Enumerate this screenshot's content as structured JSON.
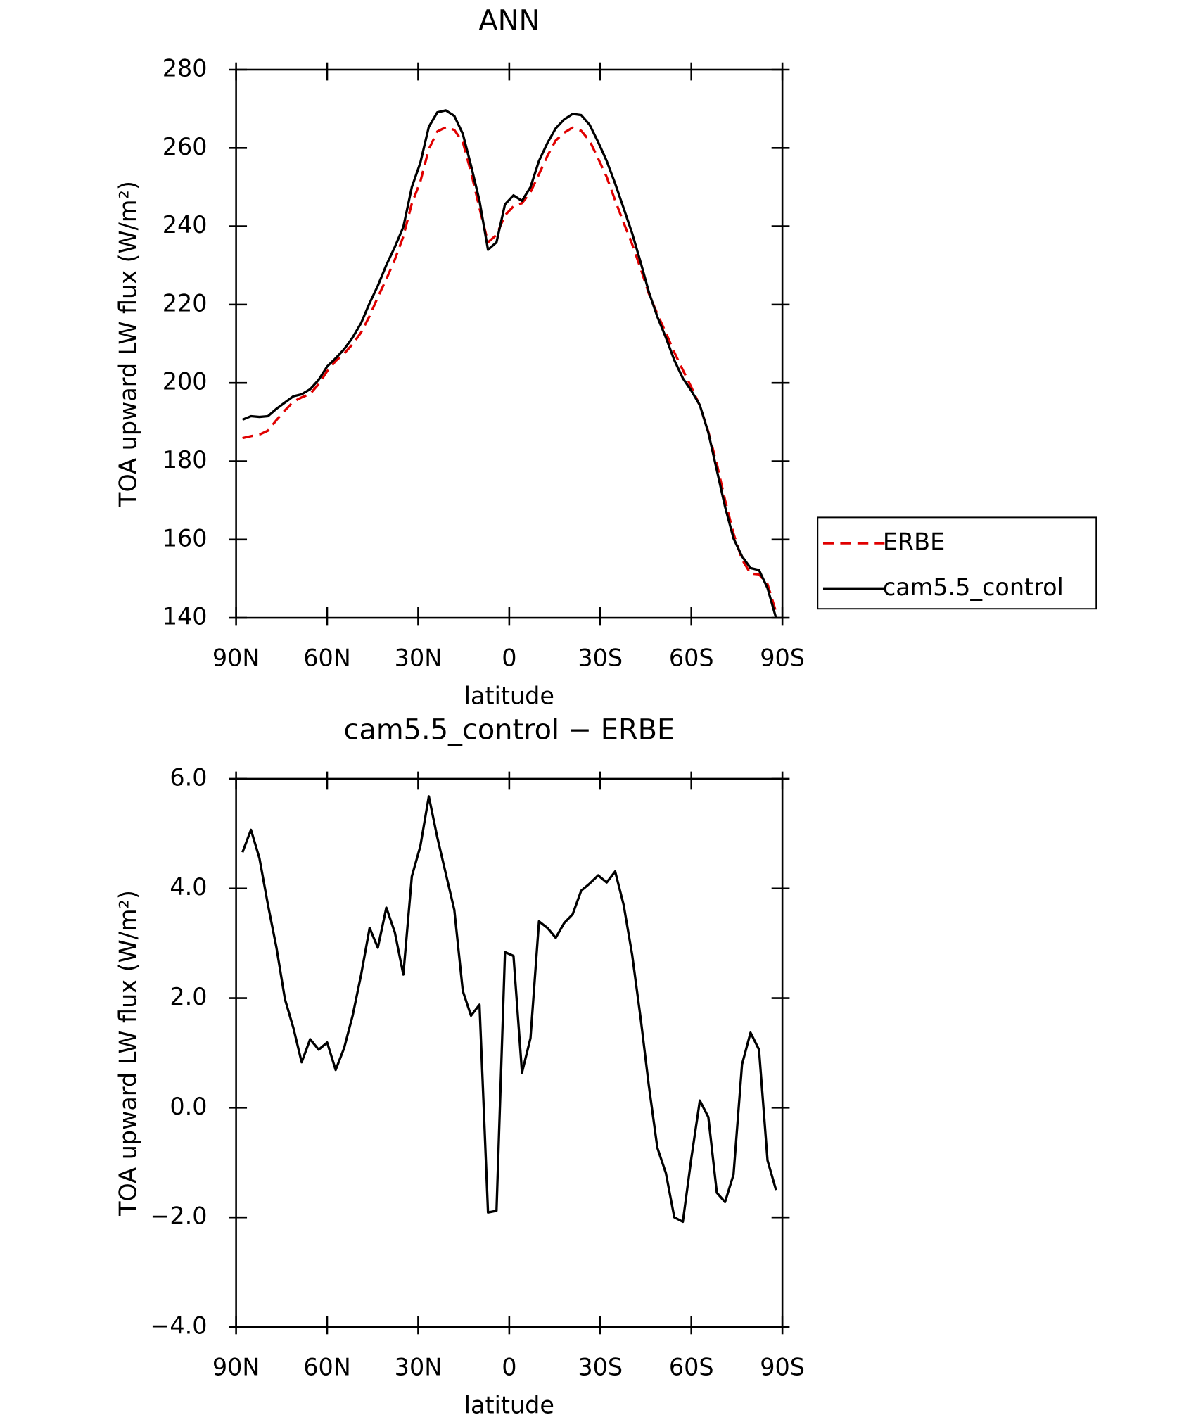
{
  "chart_data": [
    {
      "type": "line",
      "title": "ANN",
      "xlabel": "latitude",
      "ylabel": "TOA upward LW flux (W/m²)",
      "x": [
        87.9,
        85.1,
        82.3,
        79.5,
        76.7,
        73.9,
        71.1,
        68.4,
        65.6,
        62.8,
        60.0,
        57.2,
        54.4,
        51.6,
        48.8,
        46.0,
        43.3,
        40.5,
        37.7,
        34.9,
        32.1,
        29.3,
        26.5,
        23.7,
        20.9,
        18.1,
        15.3,
        12.6,
        9.8,
        7.0,
        4.2,
        1.4,
        -1.4,
        -4.2,
        -7.0,
        -9.8,
        -12.6,
        -15.3,
        -18.1,
        -20.9,
        -23.7,
        -26.5,
        -29.3,
        -32.1,
        -34.9,
        -37.7,
        -40.5,
        -43.3,
        -46.0,
        -48.8,
        -51.6,
        -54.4,
        -57.2,
        -60.0,
        -62.8,
        -65.6,
        -68.4,
        -71.1,
        -73.9,
        -76.7,
        -79.5,
        -82.3,
        -85.1,
        -87.9
      ],
      "series": [
        {
          "name": "ERBE",
          "color": "#e00000",
          "line_style": "dashed",
          "values": [
            185.9,
            186.4,
            186.8,
            187.8,
            190.5,
            193.0,
            195.2,
            196.3,
            197.2,
            199.7,
            203.0,
            205.6,
            207.5,
            209.9,
            212.9,
            217.1,
            221.9,
            226.5,
            231.5,
            237.4,
            245.8,
            251.4,
            259.7,
            264.2,
            265.3,
            264.6,
            261.5,
            253.8,
            244.6,
            235.9,
            237.8,
            242.8,
            245.1,
            245.9,
            248.7,
            253.3,
            258.0,
            261.9,
            263.9,
            265.2,
            264.4,
            261.8,
            257.3,
            252.6,
            246.6,
            240.9,
            235.4,
            229.2,
            222.8,
            217.6,
            212.8,
            207.8,
            203.3,
            198.9,
            194.2,
            187.5,
            179.3,
            170.1,
            161.5,
            154.9,
            151.3,
            151.1,
            148.6,
            141.5
          ]
        },
        {
          "name": "cam5.5_control",
          "color": "#000000",
          "line_style": "solid",
          "values": [
            190.6,
            191.5,
            191.3,
            191.5,
            193.4,
            195.0,
            196.6,
            197.1,
            198.4,
            200.8,
            204.2,
            206.3,
            208.6,
            211.6,
            215.3,
            220.4,
            224.8,
            230.1,
            234.7,
            239.8,
            250.0,
            256.2,
            265.4,
            269.1,
            269.6,
            268.2,
            263.6,
            255.5,
            246.5,
            234.0,
            235.9,
            245.6,
            247.9,
            246.5,
            250.0,
            256.7,
            261.3,
            265.0,
            267.3,
            268.7,
            268.4,
            265.9,
            261.5,
            256.7,
            250.9,
            244.6,
            238.2,
            230.8,
            223.2,
            216.9,
            211.6,
            205.8,
            201.2,
            198.0,
            194.3,
            187.3,
            177.7,
            168.4,
            160.3,
            155.7,
            152.7,
            152.2,
            147.6,
            140.0
          ]
        }
      ],
      "xlim": [
        90,
        -90
      ],
      "xticks": [
        {
          "value": 90,
          "label": "90N"
        },
        {
          "value": 60,
          "label": "60N"
        },
        {
          "value": 30,
          "label": "30N"
        },
        0,
        {
          "value": -30,
          "label": "30S"
        },
        {
          "value": -60,
          "label": "60S"
        },
        {
          "value": -90,
          "label": "90S"
        }
      ],
      "ylim": [
        140,
        280
      ],
      "yticks": [
        140,
        160,
        180,
        200,
        220,
        240,
        260,
        280
      ],
      "legend": "right"
    },
    {
      "type": "line",
      "title": "cam5.5_control − ERBE",
      "xlabel": "latitude",
      "ylabel": "TOA upward LW flux (W/m²)",
      "x": [
        87.9,
        85.1,
        82.3,
        79.5,
        76.7,
        73.9,
        71.1,
        68.4,
        65.6,
        62.8,
        60.0,
        57.2,
        54.4,
        51.6,
        48.8,
        46.0,
        43.3,
        40.5,
        37.7,
        34.9,
        32.1,
        29.3,
        26.5,
        23.7,
        20.9,
        18.1,
        15.3,
        12.6,
        9.8,
        7.0,
        4.2,
        1.4,
        -1.4,
        -4.2,
        -7.0,
        -9.8,
        -12.6,
        -15.3,
        -18.1,
        -20.9,
        -23.7,
        -26.5,
        -29.3,
        -32.1,
        -34.9,
        -37.7,
        -40.5,
        -43.3,
        -46.0,
        -48.8,
        -51.6,
        -54.4,
        -57.2,
        -60.0,
        -62.8,
        -65.6,
        -68.4,
        -71.1,
        -73.9,
        -76.7,
        -79.5,
        -82.3,
        -85.1,
        -87.9
      ],
      "color": "#000000",
      "values": [
        4.66,
        5.07,
        4.55,
        3.7,
        2.92,
        1.98,
        1.45,
        0.83,
        1.25,
        1.06,
        1.19,
        0.69,
        1.09,
        1.68,
        2.43,
        3.28,
        2.92,
        3.65,
        3.2,
        2.43,
        4.22,
        4.77,
        5.68,
        4.93,
        4.27,
        3.61,
        2.13,
        1.68,
        1.88,
        -1.91,
        -1.88,
        2.84,
        2.77,
        0.64,
        1.27,
        3.4,
        3.28,
        3.1,
        3.37,
        3.53,
        3.96,
        4.09,
        4.24,
        4.11,
        4.31,
        3.7,
        2.79,
        1.63,
        0.4,
        -0.73,
        -1.19,
        -2.0,
        -2.08,
        -0.92,
        0.13,
        -0.17,
        -1.55,
        -1.72,
        -1.22,
        0.79,
        1.37,
        1.06,
        -0.96,
        -1.5
      ],
      "xlim": [
        90,
        -90
      ],
      "xticks": [
        {
          "value": 90,
          "label": "90N"
        },
        {
          "value": 60,
          "label": "60N"
        },
        {
          "value": 30,
          "label": "30N"
        },
        0,
        {
          "value": -30,
          "label": "30S"
        },
        {
          "value": -60,
          "label": "60S"
        },
        {
          "value": -90,
          "label": "90S"
        }
      ],
      "ylim": [
        -4,
        6
      ],
      "yticks": [
        {
          "value": -4,
          "label": "−4.0"
        },
        {
          "value": -2,
          "label": "−2.0"
        },
        {
          "value": 0,
          "label": "0.0"
        },
        {
          "value": 2,
          "label": "2.0"
        },
        {
          "value": 4,
          "label": "4.0"
        },
        {
          "value": 6,
          "label": "6.0"
        }
      ]
    }
  ]
}
